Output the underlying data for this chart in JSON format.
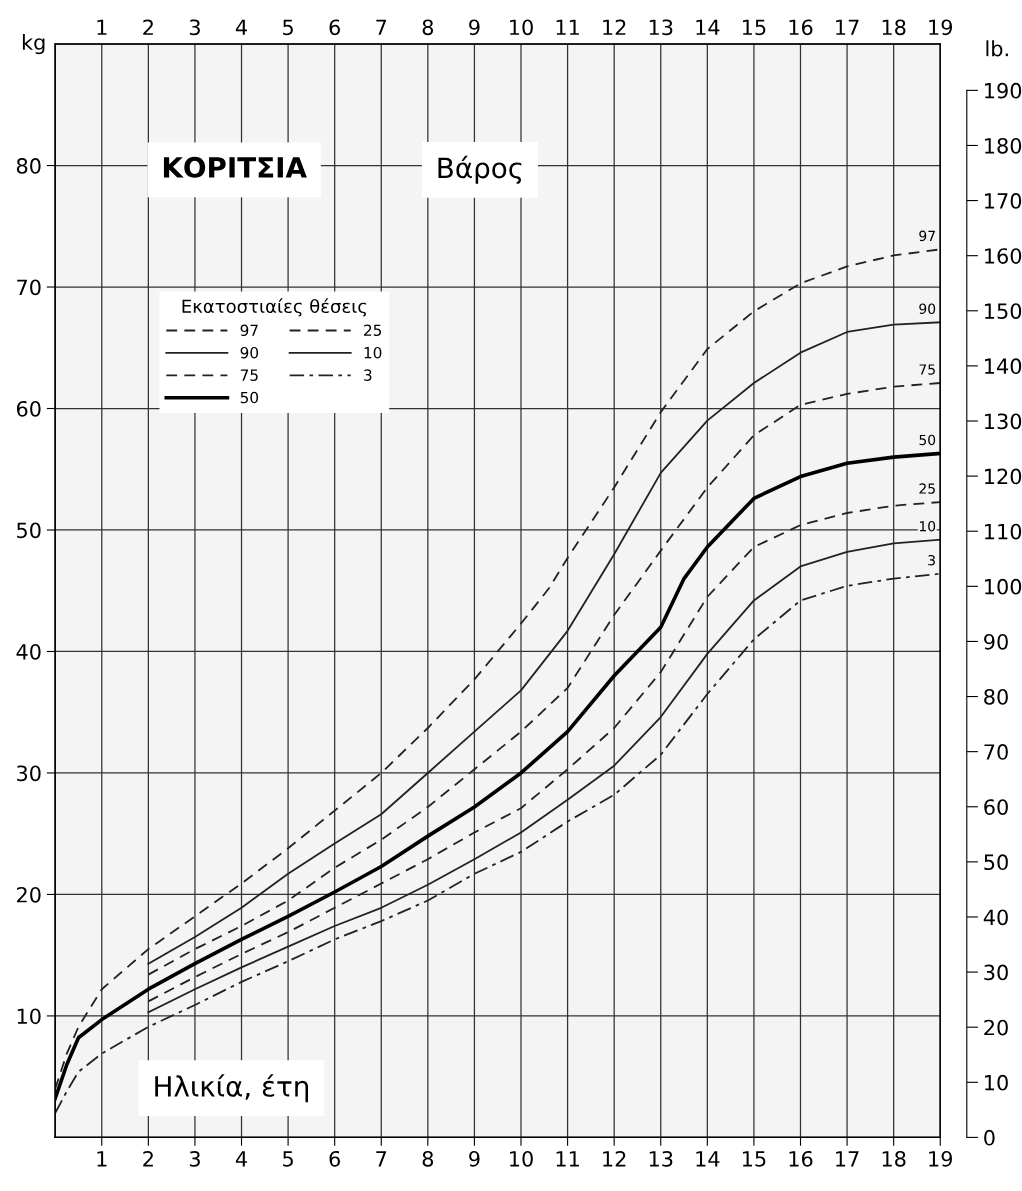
{
  "chart_data": {
    "type": "line",
    "title": "ΚΟΡΙΤΣΙΑ",
    "subtitle": "Βάρος",
    "xlabel": "Ηλικία, έτη",
    "ylabel": "kg",
    "y2label": "lb.",
    "legend_title": "Εκατοστιαίες θέσεις",
    "xlim": [
      0,
      19
    ],
    "xticks": [
      1,
      2,
      3,
      4,
      5,
      6,
      7,
      8,
      9,
      10,
      11,
      12,
      13,
      14,
      15,
      16,
      17,
      18,
      19
    ],
    "x2lim": [
      0,
      19
    ],
    "x2ticks": [
      1,
      2,
      3,
      4,
      5,
      6,
      7,
      8,
      9,
      10,
      11,
      12,
      13,
      14,
      15,
      16,
      17,
      18,
      19
    ],
    "ylim": [
      0,
      90
    ],
    "yticks": [
      10,
      20,
      30,
      40,
      50,
      60,
      70,
      80
    ],
    "y2lim": [
      0,
      198.4
    ],
    "y2ticks": [
      0,
      10,
      20,
      30,
      40,
      50,
      60,
      70,
      80,
      90,
      100,
      110,
      120,
      130,
      140,
      150,
      160,
      170,
      180,
      190
    ],
    "grid": true,
    "legend": "top left",
    "marker": "none",
    "series": [
      {
        "name": "97",
        "color": "#222222",
        "line_style": "dashed",
        "x": [
          0,
          0.25,
          0.5,
          1,
          2,
          3,
          4,
          5,
          6,
          7,
          8,
          9,
          10,
          10.6,
          11,
          12,
          13,
          14,
          15,
          16,
          17,
          18,
          19
        ],
        "values": [
          4.0,
          6.9,
          9.1,
          12.2,
          15.5,
          18.2,
          20.9,
          23.8,
          26.9,
          30,
          33.7,
          37.7,
          42.3,
          45.2,
          47.7,
          53.5,
          59.7,
          64.9,
          68,
          70.3,
          71.7,
          72.6,
          73.1
        ]
      },
      {
        "name": "90",
        "color": "#222222",
        "line_style": "solid",
        "x": [
          2,
          3,
          4,
          5,
          6,
          7,
          8,
          9,
          10,
          11,
          12,
          13,
          14,
          15,
          16,
          17,
          18,
          19
        ],
        "values": [
          14.3,
          16.5,
          18.9,
          21.7,
          24.2,
          26.6,
          30,
          33.4,
          36.8,
          41.7,
          48,
          54.7,
          59,
          62.1,
          64.6,
          66.3,
          66.9,
          67.1
        ]
      },
      {
        "name": "75",
        "color": "#222222",
        "line_style": "dashed",
        "x": [
          2,
          3,
          4,
          5,
          6,
          7,
          8,
          9,
          10,
          11,
          12,
          13,
          14,
          15,
          16,
          17,
          18,
          19
        ],
        "values": [
          13.4,
          15.5,
          17.4,
          19.5,
          22.2,
          24.5,
          27.2,
          30.3,
          33.4,
          37,
          43,
          48.3,
          53.5,
          57.8,
          60.3,
          61.2,
          61.8,
          62.1
        ]
      },
      {
        "name": "50",
        "color": "#000000",
        "line_style": "solid",
        "x": [
          0,
          0.25,
          0.5,
          1,
          2,
          3,
          4,
          5,
          6,
          7,
          8,
          9,
          10,
          11,
          12,
          13,
          13.5,
          14,
          15,
          16,
          17,
          18,
          19
        ],
        "values": [
          3.2,
          6.0,
          8.2,
          9.7,
          12.2,
          14.3,
          16.3,
          18.2,
          20.2,
          22.3,
          24.8,
          27.2,
          30,
          33.4,
          38,
          42,
          46,
          48.6,
          52.6,
          54.4,
          55.5,
          56,
          56.3
        ]
      },
      {
        "name": "25",
        "color": "#222222",
        "line_style": "dashed",
        "x": [
          2,
          3,
          4,
          5,
          6,
          7,
          8,
          9,
          10,
          11,
          12,
          13,
          14,
          15,
          16,
          17,
          18,
          19
        ],
        "values": [
          11.2,
          13.2,
          15.1,
          16.9,
          18.9,
          20.9,
          22.9,
          25.1,
          27.1,
          30.3,
          33.7,
          38.3,
          44.5,
          48.6,
          50.4,
          51.4,
          52,
          52.3
        ]
      },
      {
        "name": "10",
        "color": "#222222",
        "line_style": "solid",
        "x": [
          2,
          3,
          4,
          5,
          6,
          7,
          8,
          9,
          10,
          11,
          12,
          13,
          14,
          15,
          16,
          17,
          18,
          19
        ],
        "values": [
          10.3,
          12.2,
          14,
          15.7,
          17.4,
          18.9,
          20.8,
          22.9,
          25.1,
          27.8,
          30.6,
          34.6,
          39.8,
          44.2,
          47,
          48.2,
          48.9,
          49.2
        ]
      },
      {
        "name": "3",
        "color": "#222222",
        "line_style": "dashdot",
        "x": [
          0,
          0.25,
          0.5,
          1,
          2,
          3,
          4,
          5,
          6,
          7,
          8,
          9,
          10,
          11,
          12,
          13,
          14,
          15,
          16,
          17,
          18,
          19
        ],
        "values": [
          2.0,
          3.8,
          5.4,
          6.9,
          9.1,
          10.9,
          12.8,
          14.5,
          16.3,
          17.8,
          19.5,
          21.7,
          23.5,
          26,
          28.2,
          31.5,
          36.5,
          41,
          44.2,
          45.4,
          46,
          46.4
        ]
      }
    ]
  }
}
